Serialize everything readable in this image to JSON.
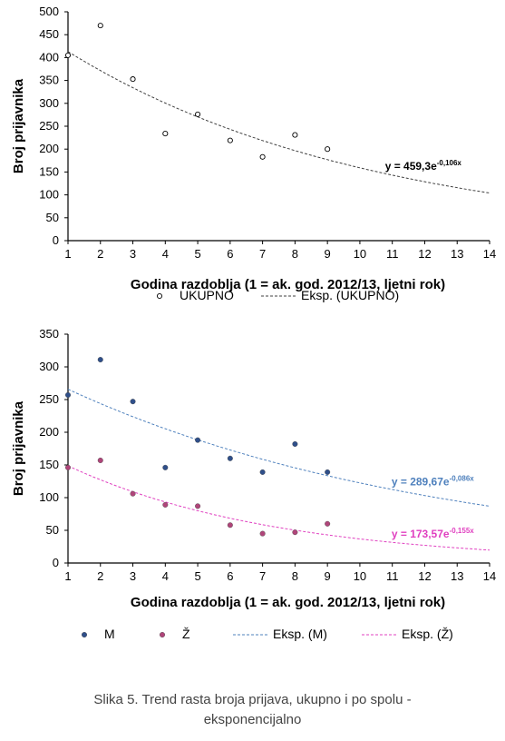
{
  "chart_data": [
    {
      "type": "scatter",
      "x": [
        1,
        2,
        3,
        4,
        5,
        6,
        7,
        8,
        9
      ],
      "series": [
        {
          "name": "UKUPNO",
          "values": [
            405,
            470,
            353,
            234,
            276,
            219,
            183,
            231,
            200
          ],
          "color": "#000000",
          "marker": "open-circle"
        }
      ],
      "trendlines": [
        {
          "name": "Eksp. (UKUPNO)",
          "type": "exponential",
          "a": 459.3,
          "b": -0.106,
          "color": "#404040",
          "equation": "y = 459,3e",
          "exponent": "-0,106x",
          "equation_at_x": 11
        }
      ],
      "xlabel": "Godina razdoblja (1 = ak. god. 2012/13, ljetni rok)",
      "ylabel": "Broj prijavnika",
      "xlim": [
        1,
        14
      ],
      "ylim": [
        0,
        500
      ],
      "xticks": [
        1,
        2,
        3,
        4,
        5,
        6,
        7,
        8,
        9,
        10,
        11,
        12,
        13,
        14
      ],
      "yticks": [
        0,
        50,
        100,
        150,
        200,
        250,
        300,
        350,
        400,
        450,
        500
      ],
      "grid": false,
      "legend_position": "bottom"
    },
    {
      "type": "scatter",
      "x": [
        1,
        2,
        3,
        4,
        5,
        6,
        7,
        8,
        9
      ],
      "series": [
        {
          "name": "M",
          "values": [
            257,
            311,
            247,
            146,
            188,
            160,
            139,
            182,
            139
          ],
          "color": "#2f4f8a",
          "marker": "filled-circle"
        },
        {
          "name": "Ž",
          "values": [
            146,
            157,
            106,
            89,
            87,
            58,
            45,
            47,
            60
          ],
          "color": "#b0457a",
          "marker": "filled-circle"
        }
      ],
      "trendlines": [
        {
          "name": "Eksp. (M)",
          "type": "exponential",
          "a": 289.67,
          "b": -0.086,
          "color": "#4f81bd",
          "equation": "y = 289,67e",
          "exponent": "-0,086x",
          "equation_at_x": 11.2
        },
        {
          "name": "Eksp. (Ž)",
          "type": "exponential",
          "a": 173.57,
          "b": -0.155,
          "color": "#e040c0",
          "equation": "y = 173,57e",
          "exponent": "-0,155x",
          "equation_at_x": 11.2
        }
      ],
      "xlabel": "Godina razdoblja (1 = ak. god. 2012/13, ljetni rok)",
      "ylabel": "Broj prijavnika",
      "xlim": [
        1,
        14
      ],
      "ylim": [
        0,
        350
      ],
      "xticks": [
        1,
        2,
        3,
        4,
        5,
        6,
        7,
        8,
        9,
        10,
        11,
        12,
        13,
        14
      ],
      "yticks": [
        0,
        50,
        100,
        150,
        200,
        250,
        300,
        350
      ],
      "grid": false,
      "legend_position": "bottom"
    }
  ],
  "caption": {
    "line1": "Slika 5. Trend rasta broja prijava, ukupno i po spolu -",
    "line2": "eksponencijalno"
  }
}
